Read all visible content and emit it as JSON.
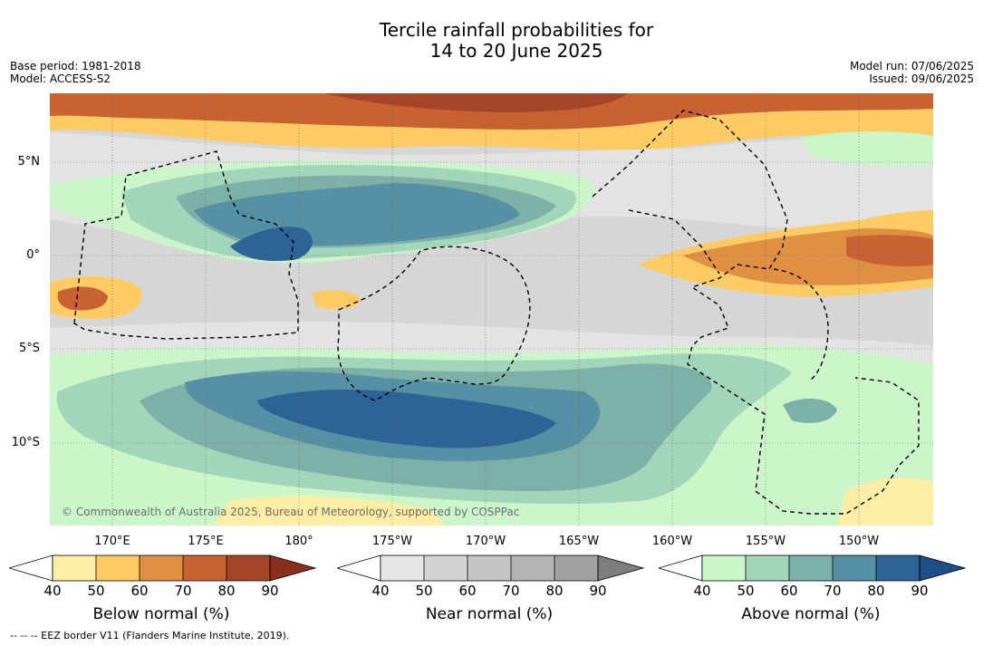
{
  "title": {
    "line1": "Tercile rainfall probabilities for",
    "line2": "14 to 20 June 2025"
  },
  "meta_left": {
    "base_period": "Base period: 1981-2018",
    "model": "Model: ACCESS-S2"
  },
  "meta_right": {
    "model_run": "Model run: 07/06/2025",
    "issued": "Issued: 09/06/2025"
  },
  "map": {
    "lat_labels": [
      "5°N",
      "0°",
      "5°S",
      "10°S"
    ],
    "lon_labels": [
      "170°E",
      "175°E",
      "180°",
      "175°W",
      "170°W",
      "165°W",
      "160°W",
      "155°W",
      "150°W"
    ],
    "copyright": "© Commonwealth of Australia 2025, Bureau of Meteorology, supported by COSPPac"
  },
  "legend": {
    "ticks": [
      "40",
      "50",
      "60",
      "70",
      "80",
      "90"
    ],
    "below": {
      "title": "Below normal (%)",
      "colors": [
        "#ffffff",
        "#feeda4",
        "#fdcb63",
        "#df9042",
        "#c86233",
        "#a64428",
        "#8a2e1e"
      ]
    },
    "near": {
      "title": "Near normal (%)",
      "colors": [
        "#ffffff",
        "#e6e6e6",
        "#d4d4d4",
        "#c4c4c4",
        "#b3b3b3",
        "#a2a2a2",
        "#7e7e7e"
      ]
    },
    "above": {
      "title": "Above normal (%)",
      "colors": [
        "#ffffff",
        "#caf6ca",
        "#a2d5ba",
        "#7db1a8",
        "#5590a4",
        "#2e6395",
        "#1e4d8a"
      ]
    }
  },
  "footnote": "--  --  -- EEZ border V11 (Flanders Marine Institute, 2019)."
}
